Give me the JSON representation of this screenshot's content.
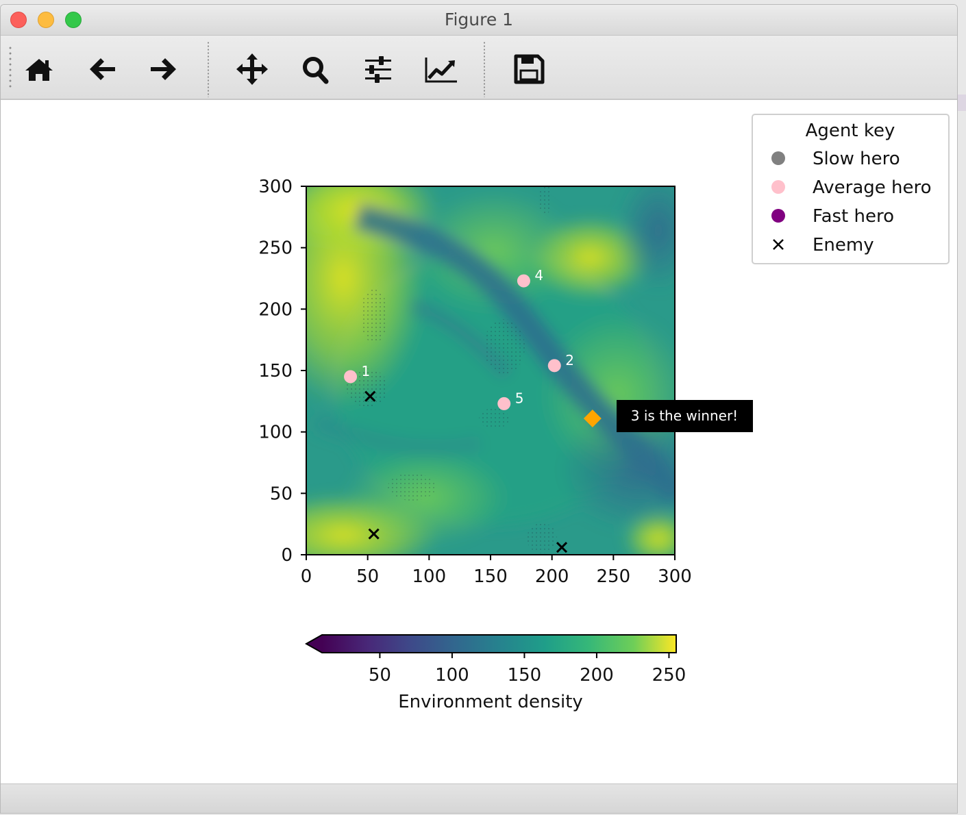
{
  "window": {
    "title": "Figure 1"
  },
  "toolbar": {
    "tools": [
      {
        "id": "home",
        "icon": "home-icon"
      },
      {
        "id": "back",
        "icon": "arrow-left-icon"
      },
      {
        "id": "forward",
        "icon": "arrow-right-icon"
      },
      {
        "id": "pan",
        "icon": "move-arrows-icon"
      },
      {
        "id": "zoom",
        "icon": "magnifier-icon"
      },
      {
        "id": "subplots",
        "icon": "sliders-icon"
      },
      {
        "id": "customize",
        "icon": "line-chart-icon"
      },
      {
        "id": "save",
        "icon": "floppy-disk-icon"
      }
    ]
  },
  "chart_data": {
    "type": "heatmap",
    "colormap": "viridis",
    "xlim": [
      0,
      300
    ],
    "ylim": [
      0,
      300
    ],
    "xticks": [
      "0",
      "50",
      "100",
      "150",
      "200",
      "250",
      "300"
    ],
    "yticks": [
      "0",
      "50",
      "100",
      "150",
      "200",
      "250",
      "300"
    ],
    "heroes": [
      {
        "label": "1",
        "x": 36,
        "y": 145,
        "speed": "Average hero"
      },
      {
        "label": "2",
        "x": 202,
        "y": 154,
        "speed": "Average hero"
      },
      {
        "label": "4",
        "x": 177,
        "y": 223,
        "speed": "Average hero"
      },
      {
        "label": "5",
        "x": 161,
        "y": 123,
        "speed": "Average hero"
      }
    ],
    "enemies": [
      {
        "x": 52,
        "y": 129
      },
      {
        "x": 55,
        "y": 17
      },
      {
        "x": 208,
        "y": 6
      }
    ],
    "winner": {
      "x": 233,
      "y": 111,
      "color": "#ffa500",
      "annotation": "3 is the winner!"
    },
    "legend": {
      "title": "Agent key",
      "placement": "top-right",
      "entries": [
        {
          "label": "Slow hero",
          "marker": "circle",
          "color": "#808080"
        },
        {
          "label": "Average hero",
          "marker": "circle",
          "color": "#ffc0cb"
        },
        {
          "label": "Fast hero",
          "marker": "circle",
          "color": "#800080"
        },
        {
          "label": "Enemy",
          "marker": "x",
          "color": "#000000"
        }
      ]
    },
    "colorbar": {
      "label": "Environment density",
      "range": [
        10,
        255
      ],
      "ticks": [
        "50",
        "100",
        "150",
        "200",
        "250"
      ],
      "extend": "min"
    },
    "density_features": {
      "bright_regions": [
        [
          15,
          30
        ],
        [
          35,
          200
        ],
        [
          25,
          290
        ],
        [
          210,
          240
        ],
        [
          280,
          20
        ]
      ],
      "dark_channel": [
        [
          60,
          285
        ],
        [
          120,
          250
        ],
        [
          170,
          200
        ],
        [
          210,
          150
        ],
        [
          250,
          90
        ],
        [
          290,
          50
        ]
      ]
    }
  }
}
